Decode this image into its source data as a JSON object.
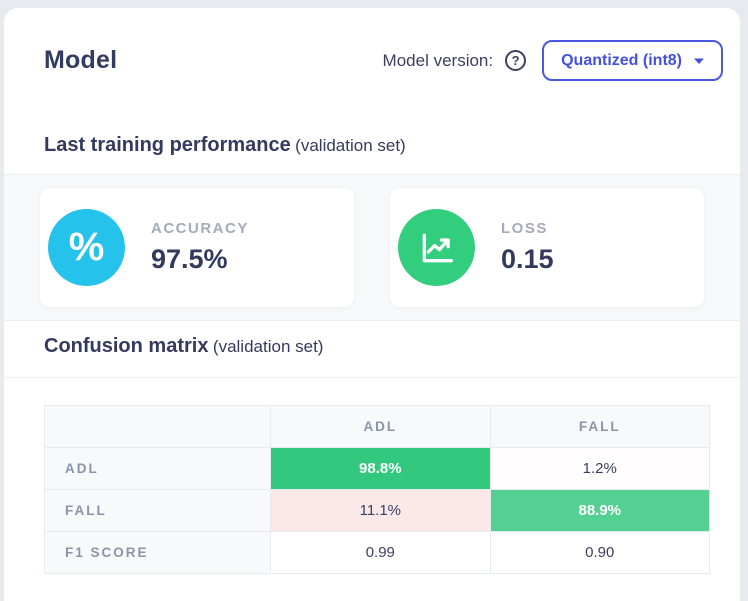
{
  "header": {
    "title": "Model",
    "version_label": "Model version:",
    "help_glyph": "?",
    "version_value": "Quantized (int8)"
  },
  "sections": {
    "training": {
      "title": "Last training performance",
      "subtitle": "(validation set)"
    },
    "confusion": {
      "title": "Confusion matrix",
      "subtitle": "(validation set)"
    }
  },
  "metrics": [
    {
      "name": "accuracy",
      "label": "ACCURACY",
      "value": "97.5%",
      "icon": "percent-icon",
      "icon_color": "#25C3EB"
    },
    {
      "name": "loss",
      "label": "LOSS",
      "value": "0.15",
      "icon": "line-chart-icon",
      "icon_color": "#33CD7E"
    }
  ],
  "confusion_matrix": {
    "columns": [
      "",
      "ADL",
      "FALL"
    ],
    "rows": [
      {
        "label": "ADL",
        "cells": [
          {
            "text": "98.8%",
            "bg": "#32C97F",
            "fg": "#FFFFFF",
            "bold": true
          },
          {
            "text": "1.2%",
            "bg": "#FFFDFD",
            "fg": "#3A4160",
            "bold": false
          }
        ]
      },
      {
        "label": "FALL",
        "cells": [
          {
            "text": "11.1%",
            "bg": "#FBE9EA",
            "fg": "#3A4160",
            "bold": false
          },
          {
            "text": "88.9%",
            "bg": "#55D093",
            "fg": "#FFFFFF",
            "bold": true
          }
        ]
      },
      {
        "label": "F1 SCORE",
        "cells": [
          {
            "text": "0.99",
            "bg": "#FFFFFF",
            "fg": "#3A4160",
            "bold": false
          },
          {
            "text": "0.90",
            "bg": "#FFFFFF",
            "fg": "#3A4160",
            "bold": false
          }
        ]
      }
    ]
  },
  "colors": {
    "accent_indigo": "#4450DE",
    "accuracy_cyan": "#25C3EB",
    "loss_green": "#33CD7E",
    "matrix_green_strong": "#32C97F",
    "matrix_green_light": "#55D093",
    "matrix_pink": "#FBE9EA",
    "heading_navy": "#343A5E",
    "muted_gray": "#8B94A8"
  }
}
